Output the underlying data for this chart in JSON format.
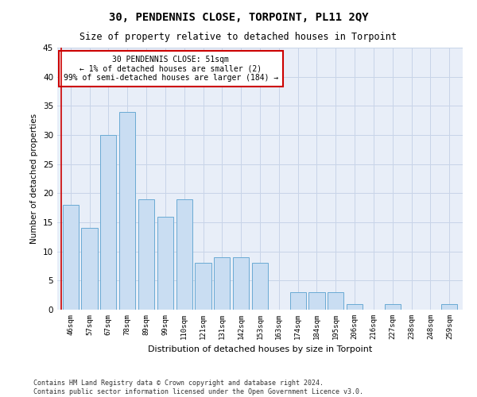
{
  "title": "30, PENDENNIS CLOSE, TORPOINT, PL11 2QY",
  "subtitle": "Size of property relative to detached houses in Torpoint",
  "xlabel": "Distribution of detached houses by size in Torpoint",
  "ylabel": "Number of detached properties",
  "categories": [
    "46sqm",
    "57sqm",
    "67sqm",
    "78sqm",
    "89sqm",
    "99sqm",
    "110sqm",
    "121sqm",
    "131sqm",
    "142sqm",
    "153sqm",
    "163sqm",
    "174sqm",
    "184sqm",
    "195sqm",
    "206sqm",
    "216sqm",
    "227sqm",
    "238sqm",
    "248sqm",
    "259sqm"
  ],
  "values": [
    18,
    14,
    30,
    34,
    19,
    16,
    19,
    8,
    9,
    9,
    8,
    0,
    3,
    3,
    3,
    1,
    0,
    1,
    0,
    0,
    1
  ],
  "bar_color": "#c9ddf2",
  "bar_edge_color": "#6aaad4",
  "ylim": [
    0,
    45
  ],
  "yticks": [
    0,
    5,
    10,
    15,
    20,
    25,
    30,
    35,
    40,
    45
  ],
  "annotation_box_text": "30 PENDENNIS CLOSE: 51sqm\n← 1% of detached houses are smaller (2)\n99% of semi-detached houses are larger (184) →",
  "annotation_box_color": "#ffffff",
  "annotation_box_edge_color": "#cc0000",
  "vline_color": "#cc0000",
  "background_color": "#ffffff",
  "plot_bg_color": "#e8eef8",
  "grid_color": "#c8d4e8",
  "footer_text": "Contains HM Land Registry data © Crown copyright and database right 2024.\nContains public sector information licensed under the Open Government Licence v3.0."
}
